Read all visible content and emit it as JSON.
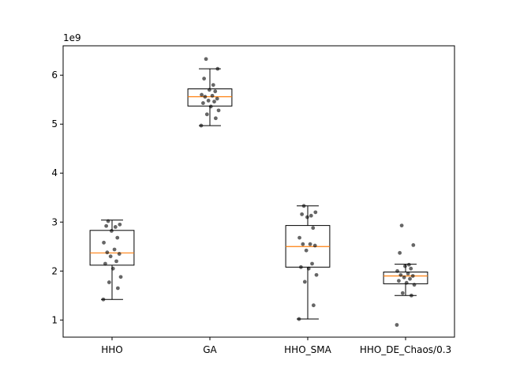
{
  "chart_data": {
    "type": "box",
    "title": "",
    "xlabel": "",
    "ylabel": "",
    "y_multiplier_label": "1e9",
    "y_multiplier": 1000000000,
    "ylim": [
      0.65,
      6.6
    ],
    "yticks": [
      1,
      2,
      3,
      4,
      5,
      6
    ],
    "grid": false,
    "categories": [
      "HHO",
      "GA",
      "HHO_SMA",
      "HHO_DE_Chaos/0.3"
    ],
    "boxes": [
      {
        "category": "HHO",
        "whisker_low": 1.42,
        "q1": 2.12,
        "median": 2.37,
        "q3": 2.83,
        "whisker_high": 3.04,
        "fliers": [],
        "points": [
          1.42,
          1.65,
          1.77,
          1.88,
          2.05,
          2.15,
          2.2,
          2.3,
          2.35,
          2.38,
          2.44,
          2.58,
          2.68,
          2.82,
          2.9,
          2.92,
          2.95,
          3.02
        ]
      },
      {
        "category": "GA",
        "whisker_low": 4.97,
        "q1": 5.37,
        "median": 5.56,
        "q3": 5.72,
        "whisker_high": 6.13,
        "fliers": [
          6.33
        ],
        "points": [
          4.97,
          5.12,
          5.2,
          5.28,
          5.36,
          5.43,
          5.46,
          5.48,
          5.52,
          5.56,
          5.58,
          5.6,
          5.67,
          5.7,
          5.8,
          5.93,
          6.13,
          6.33
        ]
      },
      {
        "category": "HHO_SMA",
        "whisker_low": 1.02,
        "q1": 2.08,
        "median": 2.5,
        "q3": 2.93,
        "whisker_high": 3.33,
        "fliers": [],
        "points": [
          1.02,
          1.3,
          1.78,
          1.92,
          2.05,
          2.08,
          2.15,
          2.42,
          2.52,
          2.55,
          2.55,
          2.68,
          2.88,
          3.1,
          3.13,
          3.16,
          3.2,
          3.33
        ]
      },
      {
        "category": "HHO_DE_Chaos/0.3",
        "whisker_low": 1.5,
        "q1": 1.74,
        "median": 1.9,
        "q3": 1.98,
        "whisker_high": 2.14,
        "fliers": [
          0.9,
          2.37,
          2.53,
          2.93
        ],
        "points": [
          0.9,
          1.5,
          1.55,
          1.72,
          1.76,
          1.8,
          1.84,
          1.87,
          1.9,
          1.92,
          1.95,
          2.0,
          2.05,
          2.1,
          2.13,
          2.37,
          2.53,
          2.93
        ]
      }
    ],
    "colors": {
      "box": "#000000",
      "median": "#ff7f0e",
      "points": "#000000"
    }
  }
}
